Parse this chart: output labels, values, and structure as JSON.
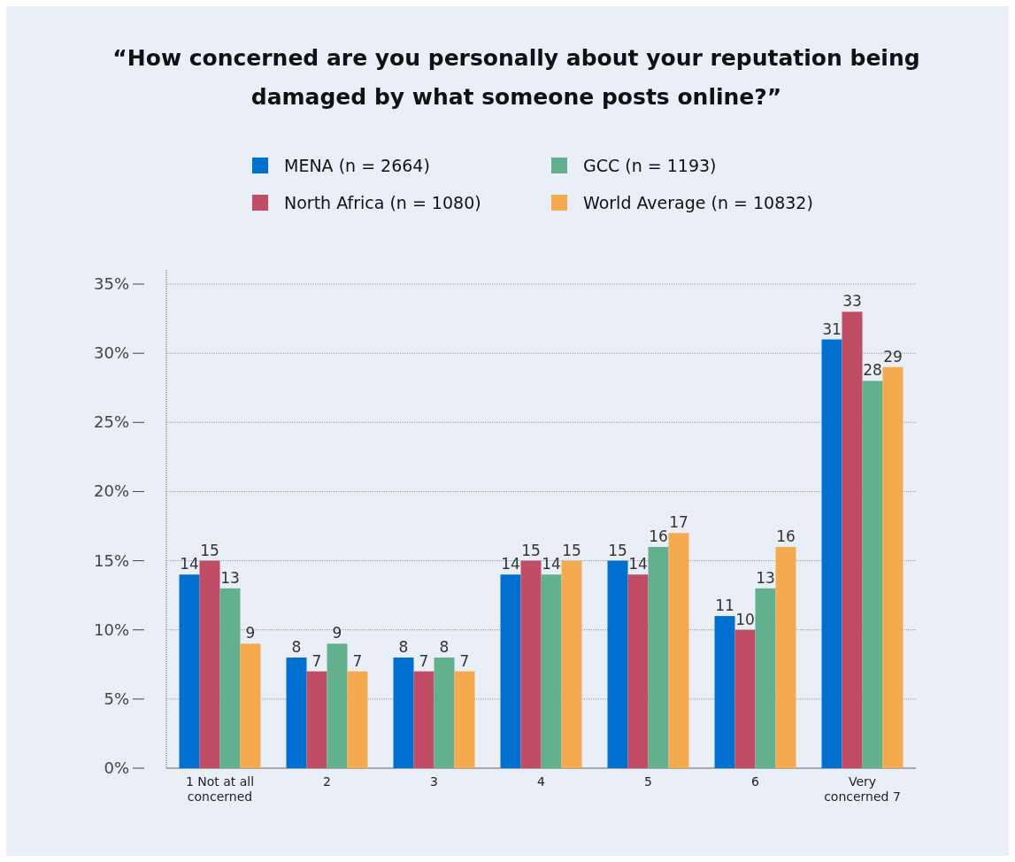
{
  "chart_data": {
    "type": "bar",
    "title": "“How concerned are you personally about your reputation being damaged by what someone posts online?”",
    "categories": [
      "1 Not at all concerned",
      "2",
      "3",
      "4",
      "5",
      "6",
      "Very concerned 7"
    ],
    "series": [
      {
        "name": "MENA (n = 2664)",
        "color": "#0070d0",
        "values": [
          14,
          8,
          8,
          14,
          15,
          11,
          31
        ]
      },
      {
        "name": "North Africa (n = 1080)",
        "color": "#c04d65",
        "values": [
          15,
          7,
          7,
          15,
          14,
          10,
          33
        ]
      },
      {
        "name": "GCC (n = 1193)",
        "color": "#63b08f",
        "values": [
          13,
          9,
          8,
          14,
          16,
          13,
          28
        ]
      },
      {
        "name": "World Average (n = 10832)",
        "color": "#f6aa50",
        "values": [
          9,
          7,
          7,
          15,
          17,
          16,
          29
        ]
      }
    ],
    "ylim": [
      0,
      35
    ],
    "yticks": [
      {
        "value": 0,
        "label": "0%"
      },
      {
        "value": 5,
        "label": "5%"
      },
      {
        "value": 10,
        "label": "10%"
      },
      {
        "value": 15,
        "label": "15%"
      },
      {
        "value": 20,
        "label": "20%"
      },
      {
        "value": 25,
        "label": "25%"
      },
      {
        "value": 30,
        "label": "30%"
      },
      {
        "value": 35,
        "label": "35%"
      }
    ],
    "grid": "y",
    "legend": "top",
    "data_labels": true
  }
}
